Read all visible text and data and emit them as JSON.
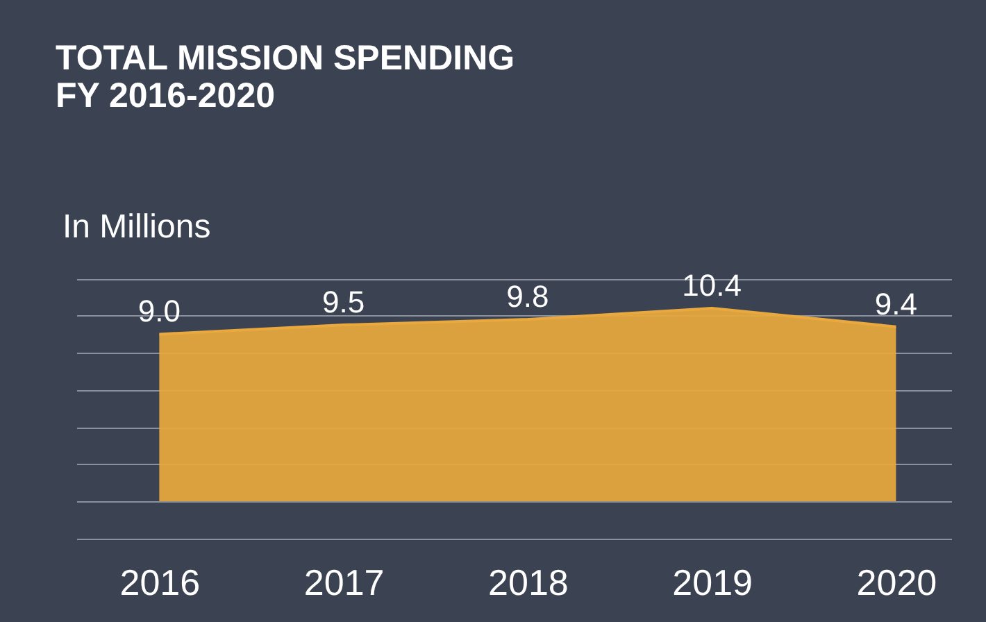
{
  "chart_data": {
    "type": "area",
    "title": [
      "TOTAL MISSION SPENDING",
      "FY 2016-2020"
    ],
    "ylabel": "In Millions",
    "categories": [
      "2016",
      "2017",
      "2018",
      "2019",
      "2020"
    ],
    "series": [
      {
        "color": "#e9a93e",
        "values": [
          9.0,
          9.5,
          9.8,
          10.4,
          9.4
        ],
        "value_labels": [
          "9.0",
          "9.5",
          "9.8",
          "10.4",
          "9.4"
        ]
      }
    ],
    "grid": "y",
    "tick_labels": "x"
  }
}
